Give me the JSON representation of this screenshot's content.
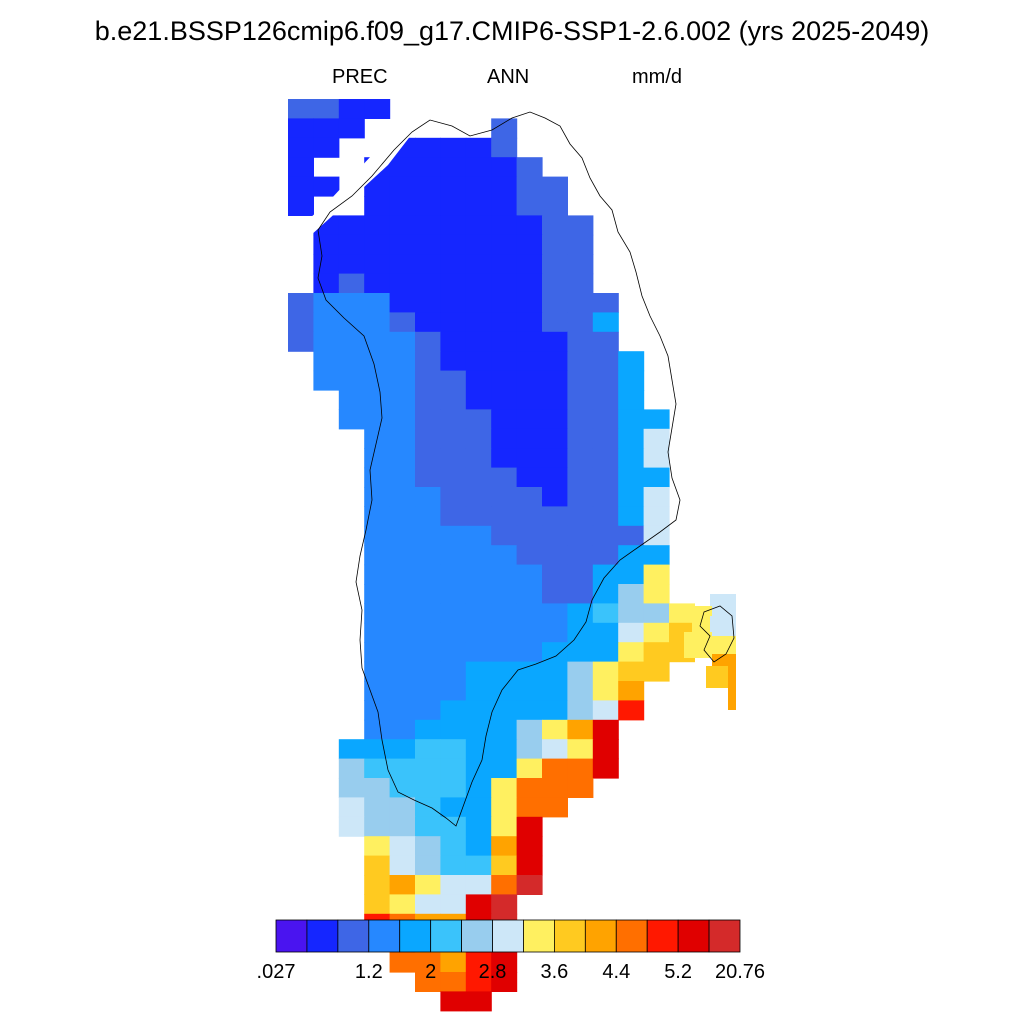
{
  "title": "b.e21.BSSP126cmip6.f09_g17.CMIP6-SSP1-2.6.002 (yrs 2025-2049)",
  "subtitle": {
    "variable": "PREC",
    "season": "ANN",
    "units": "mm/d"
  },
  "colorbar": {
    "colors": [
      "#4a14f0",
      "#1526ff",
      "#3e66e6",
      "#2688ff",
      "#0aa7ff",
      "#3ac3fb",
      "#98cdee",
      "#cde7f8",
      "#fff060",
      "#ffca20",
      "#ffa300",
      "#ff6f00",
      "#ff1800",
      "#e00000",
      "#d42a2a"
    ],
    "labels": [
      ".027",
      "",
      "1.2",
      "2",
      "2.8",
      "3.6",
      "4.4",
      "5.2",
      "20.76"
    ]
  },
  "map_data": {
    "region": "Greenland",
    "classes": {
      "a": "#1526ff",
      "b": "#3e66e6",
      "c": "#2688ff",
      "d": "#0aa7ff",
      "e": "#3ac3fb",
      "f": "#98cdee",
      "g": "#cde7f8",
      "h": "#fff060",
      "i": "#ffca20",
      "j": "#ffa300",
      "k": "#ff6f00",
      "l": "#ff1800",
      "m": "#e00000",
      "n": "#d42a2a"
    }
  }
}
